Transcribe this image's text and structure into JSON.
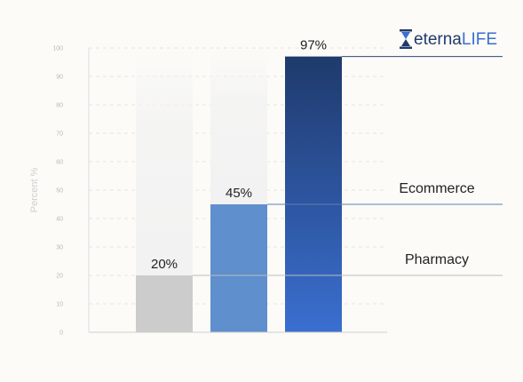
{
  "chart_data": {
    "type": "bar",
    "title": "",
    "xlabel": "",
    "ylabel": "Percent %",
    "ylim": [
      0,
      100
    ],
    "yticks": [
      0,
      10,
      20,
      30,
      40,
      50,
      60,
      70,
      80,
      90,
      100
    ],
    "grid": true,
    "categories": [
      "",
      "",
      ""
    ],
    "values": [
      20,
      45,
      97
    ],
    "data_labels": [
      "20%",
      "45%",
      "97%"
    ],
    "bar_colors": [
      "#cccccc",
      "#5f8fcc",
      "#3a6fd0"
    ],
    "bar_gradient_top": [
      "#cccccc",
      "#5f8fcc",
      "#1f3a6c"
    ],
    "annotations": [
      {
        "text": "Pharmacy",
        "value": 20,
        "line_color": "#bdbdbd"
      },
      {
        "text": "Ecommerce",
        "value": 45,
        "line_color": "#5b82b5"
      },
      {
        "text": "",
        "value": 97,
        "line_color": "#2b4a7d"
      }
    ]
  },
  "logo": {
    "text_main": "eterna",
    "text_accent": "LIFE",
    "color_main": "#1f3a6c",
    "color_accent": "#3a6fd0"
  }
}
